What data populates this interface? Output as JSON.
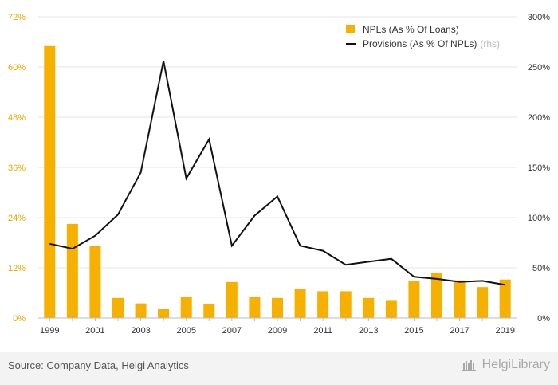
{
  "chart_data": {
    "type": "bar+line",
    "categories": [
      "1999",
      "2000",
      "2001",
      "2002",
      "2003",
      "2004",
      "2005",
      "2006",
      "2007",
      "2008",
      "2009",
      "2010",
      "2011",
      "2012",
      "2013",
      "2014",
      "2015",
      "2016",
      "2017",
      "2018",
      "2019"
    ],
    "x_tick_labels": [
      "1999",
      "2001",
      "2003",
      "2005",
      "2007",
      "2009",
      "2011",
      "2013",
      "2015",
      "2017",
      "2019"
    ],
    "series": [
      {
        "name": "NPLs (As % Of Loans)",
        "type": "bar",
        "axis": "left",
        "color": "#f5b000",
        "values": [
          65,
          22.5,
          17.2,
          4.8,
          3.5,
          2.1,
          5.0,
          3.3,
          8.6,
          5.0,
          4.8,
          7.0,
          6.4,
          6.4,
          4.8,
          4.3,
          8.8,
          10.8,
          9.0,
          7.4,
          9.2
        ]
      },
      {
        "name": "Provisions (As % Of NPLs)",
        "name_suffix": "(rhs)",
        "type": "line",
        "axis": "right",
        "color": "#111111",
        "values": [
          74,
          69,
          82,
          103,
          145,
          256,
          139,
          178,
          72,
          102,
          121,
          72,
          67,
          53,
          56,
          59,
          41,
          39,
          36,
          37,
          33
        ]
      }
    ],
    "y_left": {
      "min": 0,
      "max": 72,
      "ticks": [
        "0%",
        "12%",
        "24%",
        "36%",
        "48%",
        "60%",
        "72%"
      ]
    },
    "y_right": {
      "min": 0,
      "max": 300,
      "ticks": [
        "0%",
        "50%",
        "100%",
        "150%",
        "200%",
        "250%",
        "300%"
      ]
    },
    "grid": true,
    "legend_position": "top-right"
  },
  "footer": {
    "source": "Source: Company Data, Helgi Analytics",
    "brand": "HelgiLibrary"
  }
}
